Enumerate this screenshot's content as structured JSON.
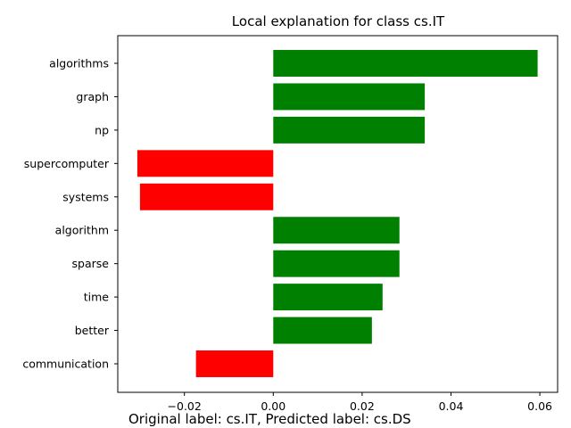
{
  "chart_data": {
    "type": "bar",
    "orientation": "horizontal",
    "title": "Local explanation for class cs.IT",
    "xlabel": "",
    "ylabel": "",
    "categories": [
      "algorithms",
      "graph",
      "np",
      "supercomputer",
      "systems",
      "algorithm",
      "sparse",
      "time",
      "better",
      "communication"
    ],
    "values": [
      0.0595,
      0.0341,
      0.0341,
      -0.0306,
      -0.03,
      0.0284,
      0.0284,
      0.0246,
      0.0222,
      -0.0174
    ],
    "xlim": [
      -0.035,
      0.064
    ],
    "xticks": [
      -0.02,
      0.0,
      0.02,
      0.04,
      0.06
    ],
    "xtick_labels": [
      "−0.02",
      "0.00",
      "0.02",
      "0.04",
      "0.06"
    ],
    "positive_color": "#008000",
    "negative_color": "#ff0000",
    "grid": false,
    "legend": "none"
  },
  "caption": "Original label: cs.IT, Predicted label: cs.DS"
}
